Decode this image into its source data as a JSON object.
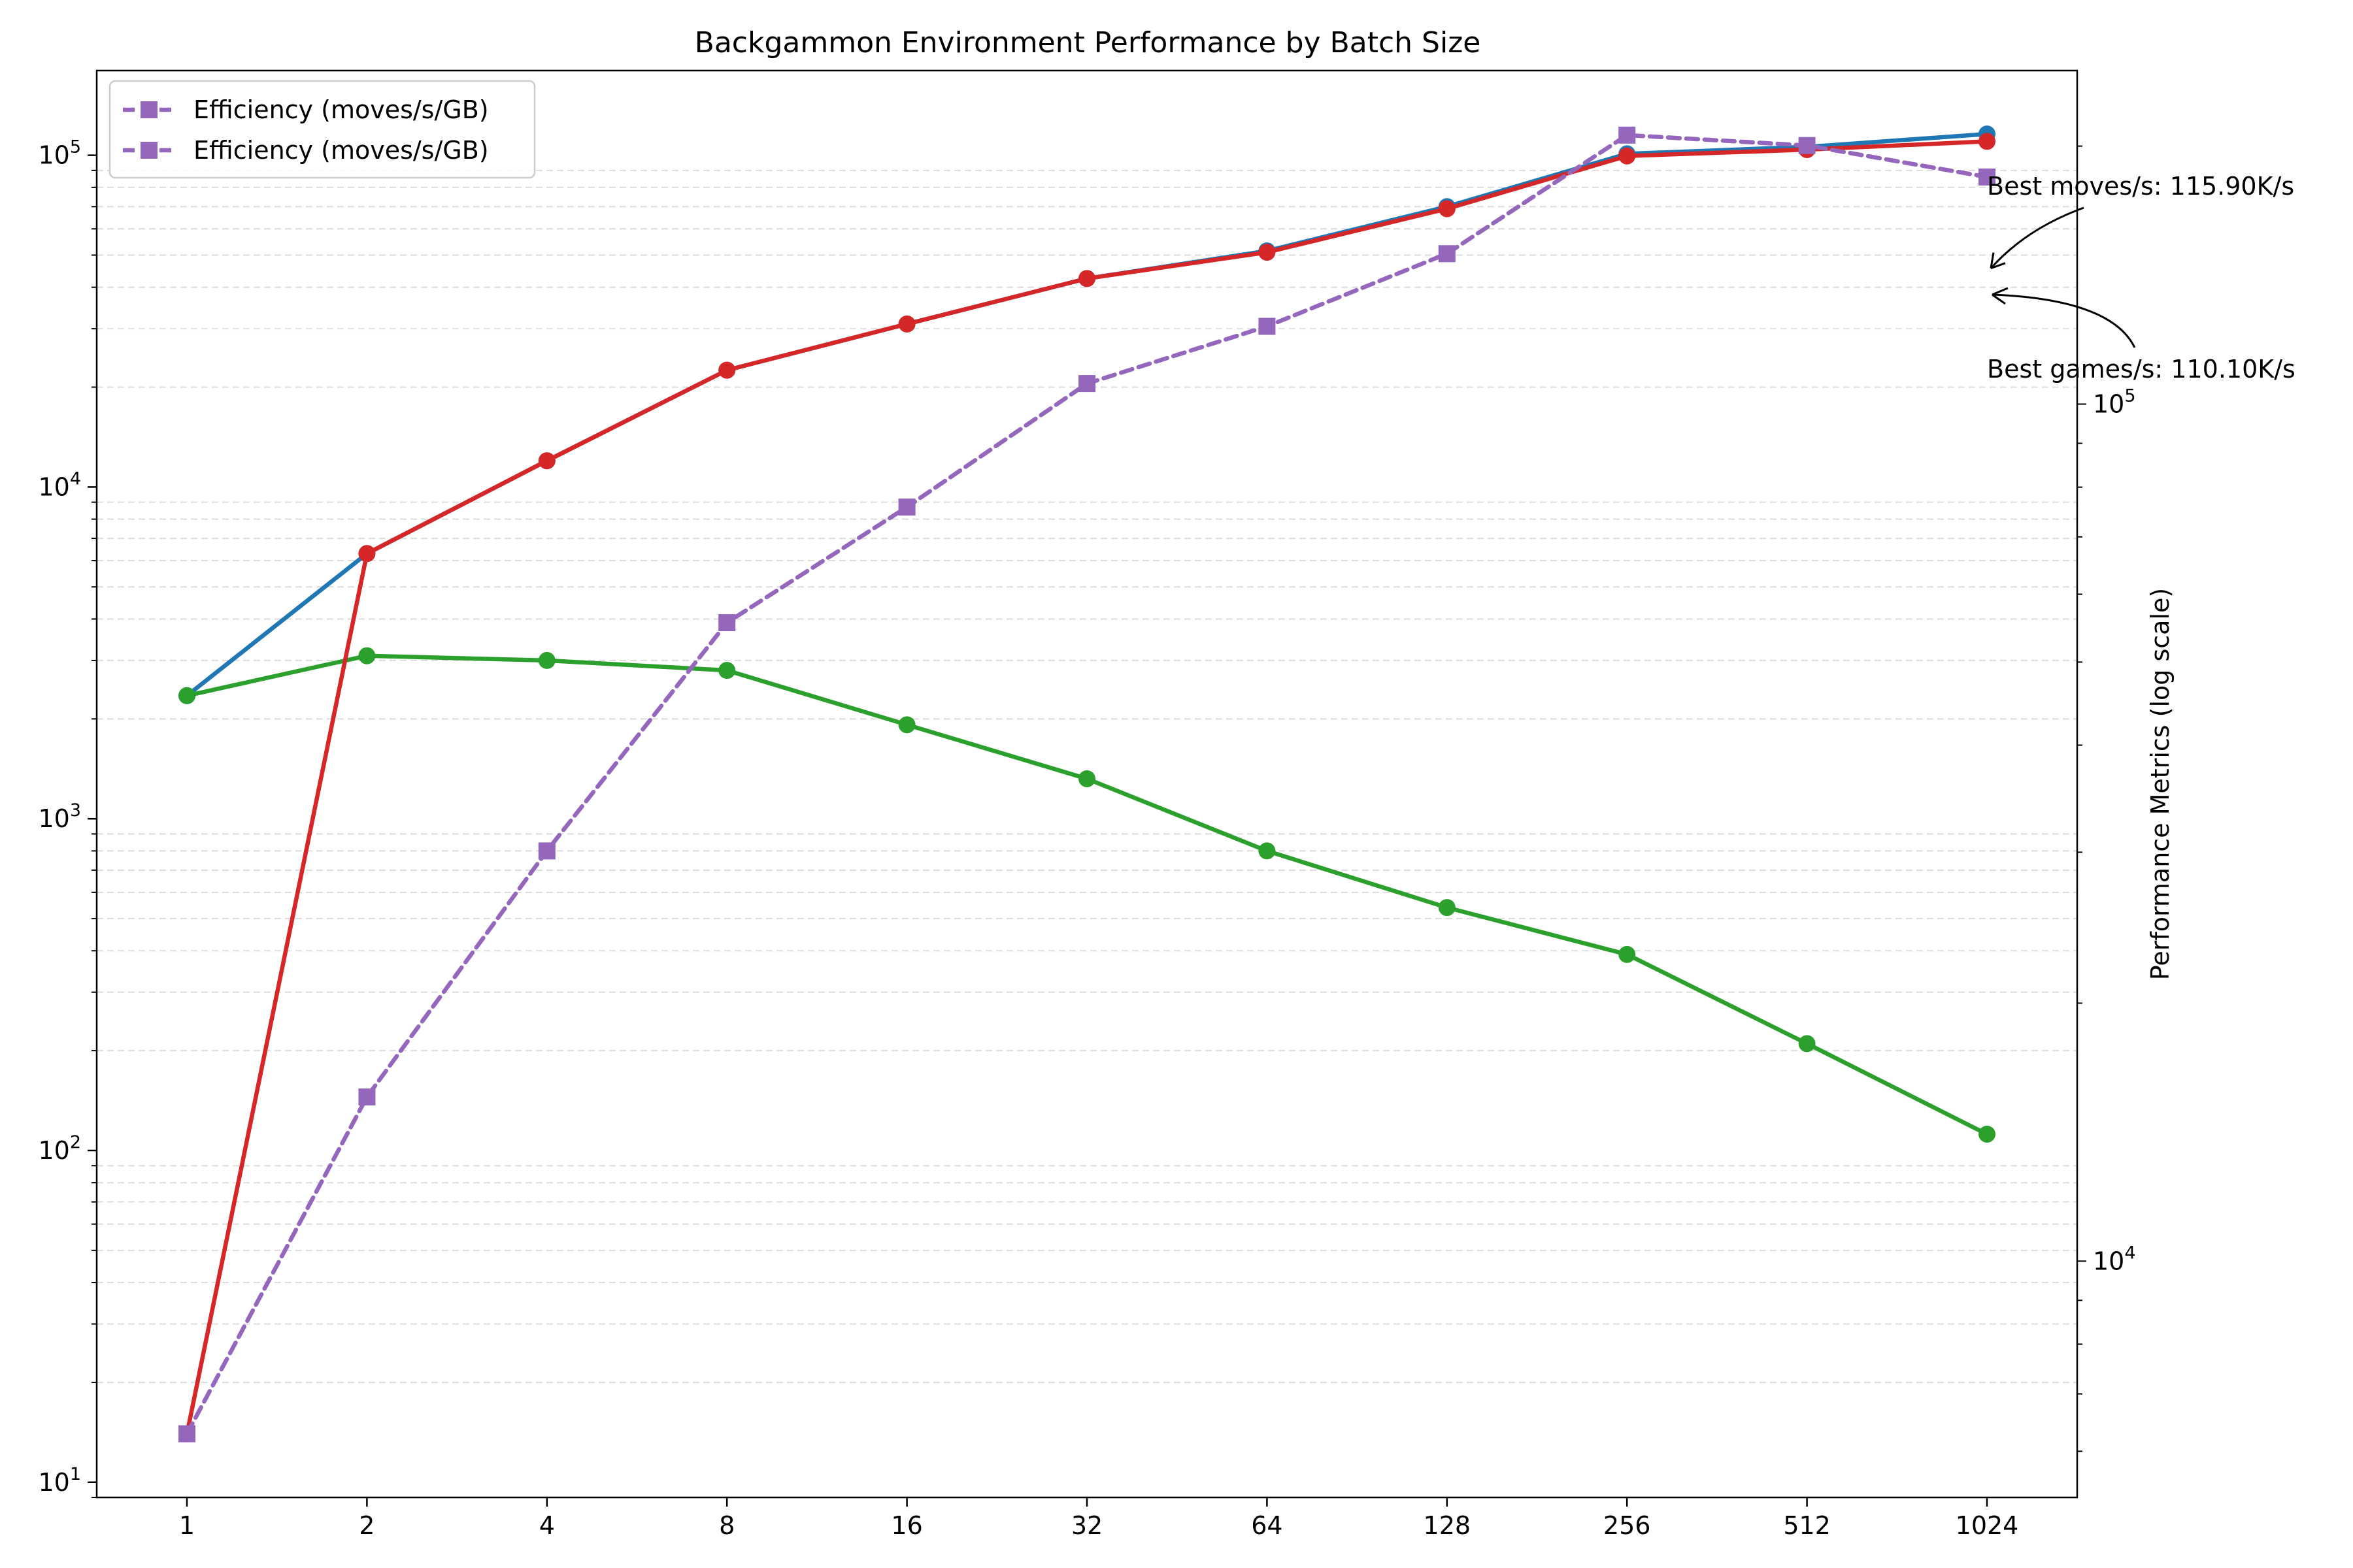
{
  "chart_data": {
    "type": "line",
    "title": "Backgammon Environment Performance by Batch Size",
    "xlabel": "",
    "ylabel": "",
    "y2label": "Performance Metrics (log scale)",
    "x_scale": "log2",
    "y_scale": "log",
    "y2_scale": "log",
    "x": [
      1,
      2,
      4,
      8,
      16,
      32,
      64,
      128,
      256,
      512,
      1024
    ],
    "x_tick_labels": [
      "1",
      "2",
      "4",
      "8",
      "16",
      "32",
      "64",
      "128",
      "256",
      "512",
      "1024"
    ],
    "ylim": [
      9,
      180000
    ],
    "y_tick_values": [
      10,
      100,
      1000,
      10000,
      100000
    ],
    "y_tick_labels": [
      {
        "base": "10",
        "exp": "1"
      },
      {
        "base": "10",
        "exp": "2"
      },
      {
        "base": "10",
        "exp": "3"
      },
      {
        "base": "10",
        "exp": "4"
      },
      {
        "base": "10",
        "exp": "5"
      }
    ],
    "y2lim": [
      5300,
      245000
    ],
    "y2_tick_values": [
      10000,
      100000
    ],
    "y2_tick_labels": [
      {
        "base": "10",
        "exp": "4"
      },
      {
        "base": "10",
        "exp": "5"
      }
    ],
    "grid": "y minor, dashed",
    "legend_position": "upper left",
    "legend_entries": [
      {
        "label": "Efficiency (moves/s/GB)",
        "color": "#9467bd",
        "marker": "square",
        "style": "dashed"
      },
      {
        "label": "Efficiency (moves/s/GB)",
        "color": "#9467bd",
        "marker": "square",
        "style": "dashed"
      }
    ],
    "series": [
      {
        "color": "#1f77b4",
        "axis": "left",
        "style": "solid",
        "marker": "circle",
        "values": [
          2350,
          6300,
          12000,
          22500,
          31000,
          42500,
          51500,
          70000,
          101000,
          106000,
          115900
        ]
      },
      {
        "color": "#2ca02c",
        "axis": "left",
        "style": "solid",
        "marker": "circle",
        "values": [
          2350,
          3100,
          3000,
          2800,
          1920,
          1320,
          800,
          540,
          390,
          210,
          112
        ]
      },
      {
        "color": "#d62728",
        "axis": "left",
        "style": "solid",
        "marker": "circle",
        "values": [
          14,
          6300,
          12000,
          22500,
          31000,
          42500,
          51000,
          69000,
          99500,
          104000,
          110100
        ]
      },
      {
        "color": "#9467bd",
        "axis": "left",
        "style": "dashed",
        "marker": "square",
        "values": [
          14,
          145,
          800,
          3900,
          8700,
          20500,
          30500,
          50500,
          115000,
          107000,
          86000
        ]
      }
    ],
    "annotations": [
      {
        "text": "Best moves/s: 115.90K/s",
        "x": 1024,
        "y": 44000
      },
      {
        "text": "Best games/s: 110.10K/s",
        "x": 1024,
        "y": 38000
      }
    ]
  }
}
